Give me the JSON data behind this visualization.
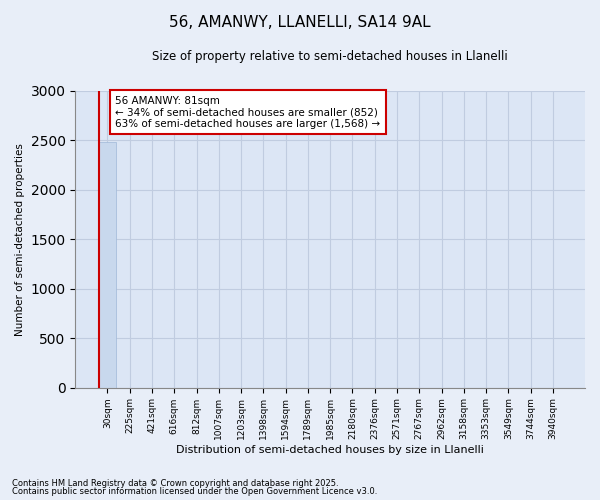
{
  "title": "56, AMANWY, LLANELLI, SA14 9AL",
  "subtitle": "Size of property relative to semi-detached houses in Llanelli",
  "xlabel": "Distribution of semi-detached houses by size in Llanelli",
  "ylabel": "Number of semi-detached properties",
  "categories": [
    "30sqm",
    "225sqm",
    "421sqm",
    "616sqm",
    "812sqm",
    "1007sqm",
    "1203sqm",
    "1398sqm",
    "1594sqm",
    "1789sqm",
    "1985sqm",
    "2180sqm",
    "2376sqm",
    "2571sqm",
    "2767sqm",
    "2962sqm",
    "3158sqm",
    "3353sqm",
    "3549sqm",
    "3744sqm",
    "3940sqm"
  ],
  "values": [
    2480,
    0,
    0,
    0,
    0,
    0,
    0,
    0,
    0,
    0,
    0,
    0,
    0,
    0,
    0,
    0,
    0,
    0,
    0,
    0,
    0
  ],
  "bar_color": "#c8d8ed",
  "annotation_text_line1": "56 AMANWY: 81sqm",
  "annotation_text_line2": "← 34% of semi-detached houses are smaller (852)",
  "annotation_text_line3": "63% of semi-detached houses are larger (1,568) →",
  "ylim": [
    0,
    3000
  ],
  "background_color": "#e8eef8",
  "plot_bg_color": "#dce6f5",
  "grid_color": "#c0cce0",
  "footnote_line1": "Contains HM Land Registry data © Crown copyright and database right 2025.",
  "footnote_line2": "Contains public sector information licensed under the Open Government Licence v3.0.",
  "red_line_color": "#cc0000",
  "annotation_box_color": "white",
  "annotation_border_color": "#cc0000"
}
